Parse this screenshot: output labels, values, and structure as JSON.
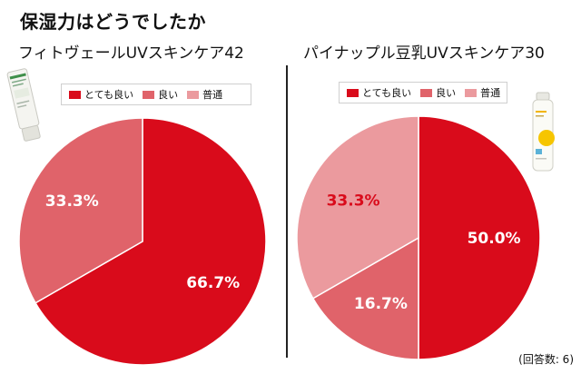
{
  "title": "保湿力はどうでしたか",
  "note": "(回答数: 6)",
  "colors": {
    "very_good": "#d90b1b",
    "good": "#e0636a",
    "normal": "#eb9a9e"
  },
  "chart_data": [
    {
      "type": "pie",
      "title": "フィトヴェールUVスキンケア42",
      "legend_position": "top",
      "legend": [
        "とても良い",
        "良い",
        "普通"
      ],
      "slices": [
        {
          "label": "とても良い",
          "value": 66.7,
          "value_label": "66.7%"
        },
        {
          "label": "良い",
          "value": 33.3,
          "value_label": "33.3%"
        }
      ]
    },
    {
      "type": "pie",
      "title": "パイナップル豆乳UVスキンケア30",
      "legend_position": "top",
      "legend": [
        "とても良い",
        "良い",
        "普通"
      ],
      "slices": [
        {
          "label": "とても良い",
          "value": 50.0,
          "value_label": "50.0%"
        },
        {
          "label": "良い",
          "value": 16.7,
          "value_label": "16.7%"
        },
        {
          "label": "普通",
          "value": 33.3,
          "value_label": "33.3%"
        }
      ]
    }
  ]
}
